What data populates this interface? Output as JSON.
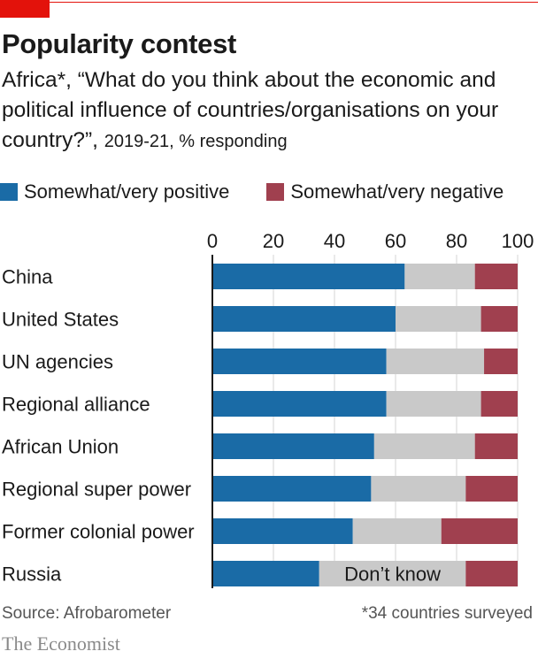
{
  "header": {
    "title": "Popularity contest",
    "subtitle_main": "Africa*, “What do you think about the economic and political influence of countries/organisations on your country?”,",
    "subtitle_tail": "2019-21, % responding"
  },
  "legend": {
    "positive_label": "Somewhat/very positive",
    "negative_label": "Somewhat/very negative"
  },
  "colors": {
    "positive": "#1a6ba6",
    "dont_know": "#c9c9c9",
    "negative": "#a0404f",
    "accent": "#e3120b"
  },
  "chart_data": {
    "type": "bar",
    "orientation": "horizontal",
    "stacked": true,
    "categories": [
      "China",
      "United States",
      "UN agencies",
      "Regional alliance",
      "African Union",
      "Regional super power",
      "Former colonial power",
      "Russia"
    ],
    "series": [
      {
        "name": "Somewhat/very positive",
        "values": [
          63,
          60,
          57,
          57,
          53,
          52,
          46,
          35
        ]
      },
      {
        "name": "Don’t know",
        "values": [
          23,
          28,
          32,
          31,
          33,
          31,
          29,
          48
        ]
      },
      {
        "name": "Somewhat/very negative",
        "values": [
          14,
          12,
          11,
          12,
          14,
          17,
          25,
          17
        ]
      }
    ],
    "xticks": [
      0,
      20,
      40,
      60,
      80,
      100
    ],
    "xlim": [
      0,
      100
    ],
    "annotation": "Don’t know",
    "grid": true
  },
  "footer": {
    "source": "Source: Afrobarometer",
    "note": "*34 countries surveyed",
    "brand": "The Economist"
  }
}
